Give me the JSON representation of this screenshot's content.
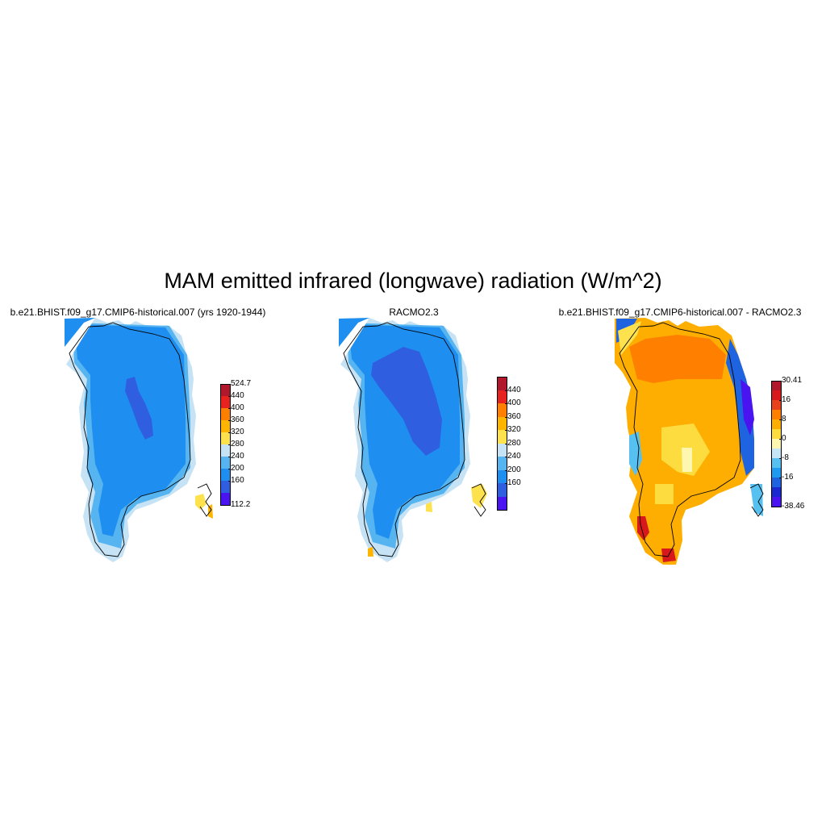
{
  "title": "MAM emitted infrared (longwave) radiation (W/m^2)",
  "panels": [
    {
      "id": "model",
      "title": "b.e21.BHIST.f09_g17.CMIP6-historical.007 (yrs 1920-1944)",
      "colorbar": {
        "colors": [
          "#b2182b",
          "#e8231f",
          "#ff7f00",
          "#fdb500",
          "#fde24e",
          "#c6e2f5",
          "#56b4f0",
          "#1e8ff0",
          "#2f5fe0",
          "#4a14f0"
        ],
        "labels": [
          "524.7",
          "440",
          "400",
          "360",
          "320",
          "280",
          "240",
          "200",
          "160",
          "112.2"
        ]
      }
    },
    {
      "id": "racmo",
      "title": "RACMO2.3",
      "colorbar": {
        "colors": [
          "#b2182b",
          "#e8231f",
          "#ff7f00",
          "#fdb500",
          "#fde24e",
          "#c6e2f5",
          "#56b4f0",
          "#1e8ff0",
          "#2f5fe0",
          "#4a14f0"
        ],
        "labels": [
          "440",
          "400",
          "360",
          "320",
          "280",
          "240",
          "200",
          "160"
        ]
      }
    },
    {
      "id": "diff",
      "title": "b.e21.BHIST.f09_g17.CMIP6-historical.007 - RACMO2.3",
      "colorbar": {
        "colors": [
          "#b2182b",
          "#d7191c",
          "#e8401a",
          "#ff7f00",
          "#fdae00",
          "#fddc40",
          "#fff6b0",
          "#c6e6f8",
          "#56c0f0",
          "#1e9af0",
          "#1e64e0",
          "#1a2ad0",
          "#4a14f0"
        ],
        "labels": [
          "30.41",
          "16",
          "8",
          "0",
          "-8",
          "-16",
          "-38.46"
        ]
      }
    }
  ]
}
